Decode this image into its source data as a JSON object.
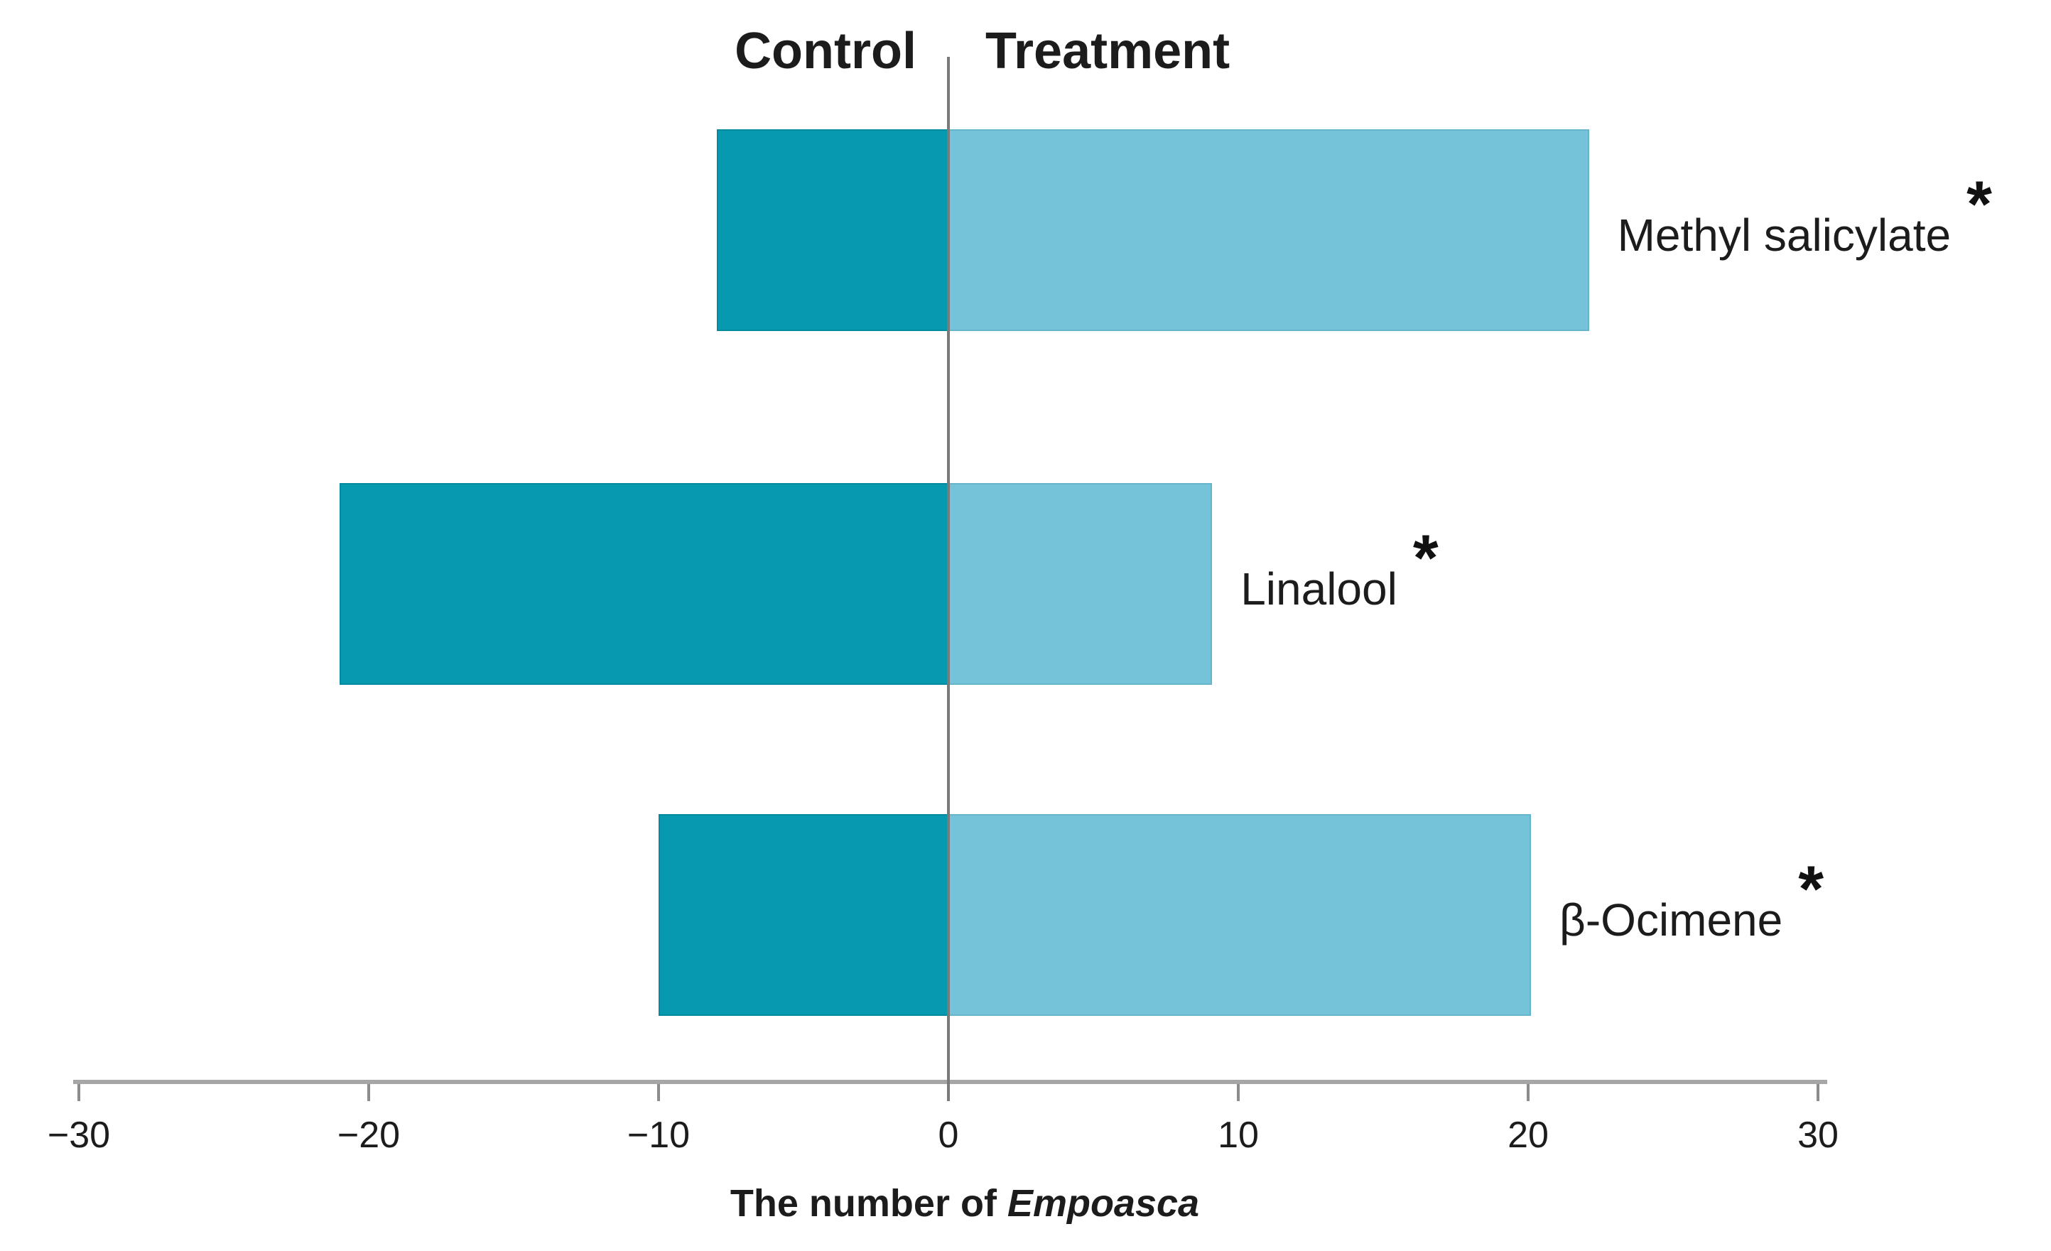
{
  "chart_data": {
    "type": "bar",
    "orientation": "horizontal-diverging",
    "categories": [
      "Methyl salicylate",
      "Linalool",
      "β-Ocimene"
    ],
    "series": [
      {
        "name": "Control",
        "values": [
          -8,
          -21,
          -10
        ],
        "color": "#0699AF"
      },
      {
        "name": "Treatment",
        "values": [
          22,
          9,
          20
        ],
        "color": "#74C3D8"
      }
    ],
    "significance_markers": [
      "*",
      "*",
      "*"
    ],
    "xlabel_prefix": "The number of ",
    "xlabel_italic": "Empoasca",
    "xlim": [
      -30,
      30
    ],
    "xticks": {
      "values": [
        -30,
        -20,
        -10,
        0,
        10,
        20,
        30
      ],
      "labels": [
        "−30",
        "−20",
        "−10",
        "0",
        "10",
        "20",
        "30"
      ]
    },
    "grid": false,
    "legend_position": "column-headers-top"
  },
  "colors": {
    "background": "#FFFFFF",
    "control": "#0699AF",
    "treatment": "#74C3D8",
    "zero_line": "#7A7A7A",
    "axis_line": "#A6A6A6",
    "text": "#1C1C1C"
  }
}
